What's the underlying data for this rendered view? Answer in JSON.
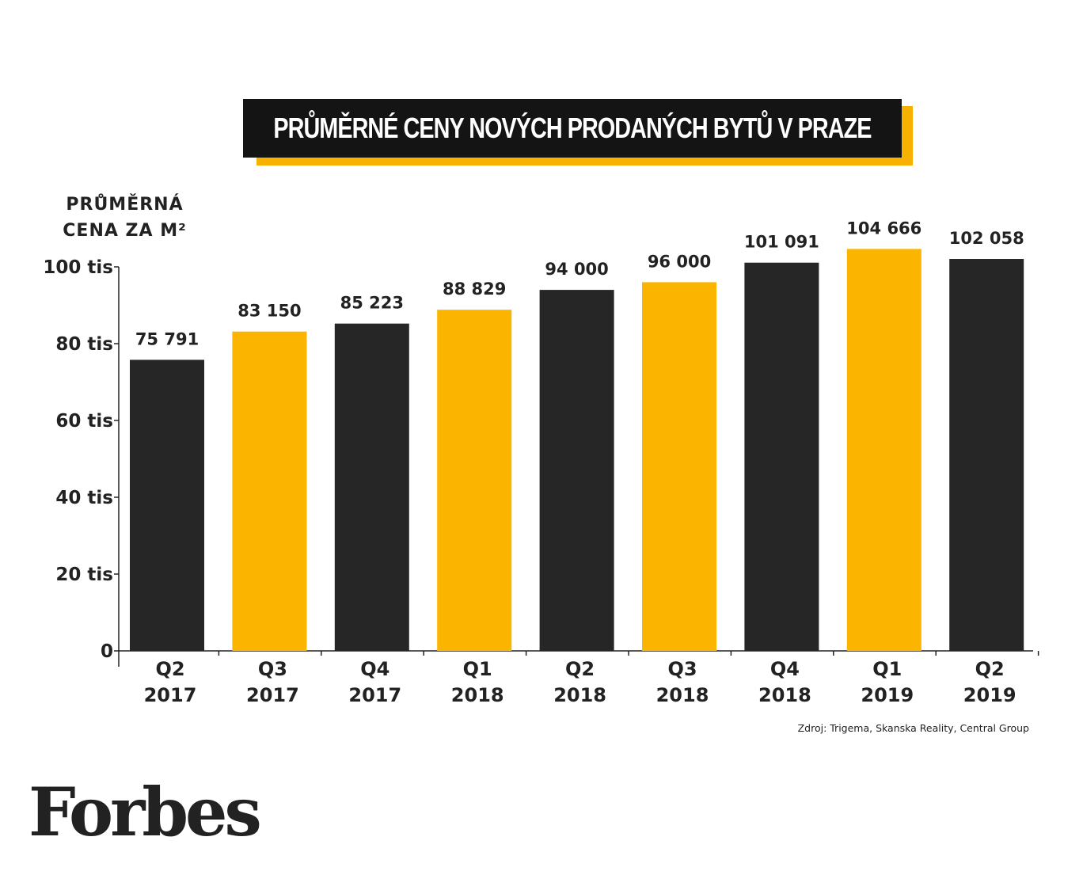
{
  "chart_data": {
    "type": "bar",
    "title": "PRŮMĚRNÉ CENY NOVÝCH PRODANÝCH BYTŮ V PRAZE",
    "ylabel_line1": "PRŮMĚRNÁ",
    "ylabel_line2": "CENA ZA M²",
    "categories": [
      {
        "quarter": "Q2",
        "year": "2017"
      },
      {
        "quarter": "Q3",
        "year": "2017"
      },
      {
        "quarter": "Q4",
        "year": "2017"
      },
      {
        "quarter": "Q1",
        "year": "2018"
      },
      {
        "quarter": "Q2",
        "year": "2018"
      },
      {
        "quarter": "Q3",
        "year": "2018"
      },
      {
        "quarter": "Q4",
        "year": "2018"
      },
      {
        "quarter": "Q1",
        "year": "2019"
      },
      {
        "quarter": "Q2",
        "year": "2019"
      }
    ],
    "values": [
      75791,
      83150,
      85223,
      88829,
      94000,
      96000,
      101091,
      104666,
      102058
    ],
    "value_labels": [
      "75 791",
      "83 150",
      "85 223",
      "88 829",
      "94 000",
      "96 000",
      "101 091",
      "104 666",
      "102 058"
    ],
    "bar_colors": [
      "#262626",
      "#fbb400",
      "#262626",
      "#fbb400",
      "#262626",
      "#fbb400",
      "#262626",
      "#fbb400",
      "#262626"
    ],
    "ylim": [
      0,
      100000
    ],
    "yticks": [
      {
        "value": 0,
        "label": "0"
      },
      {
        "value": 20000,
        "label": "20 tis"
      },
      {
        "value": 40000,
        "label": "40 tis"
      },
      {
        "value": 60000,
        "label": "60 tis"
      },
      {
        "value": 80000,
        "label": "80 tis"
      },
      {
        "value": 100000,
        "label": "100 tis"
      }
    ],
    "grid": false,
    "legend": "none"
  },
  "source": "Zdroj: Trigema, Skanska Reality, Central Group",
  "logo_text": "Forbes",
  "colors": {
    "accent": "#fbb400",
    "dark": "#262626",
    "title_bg": "#141414"
  }
}
